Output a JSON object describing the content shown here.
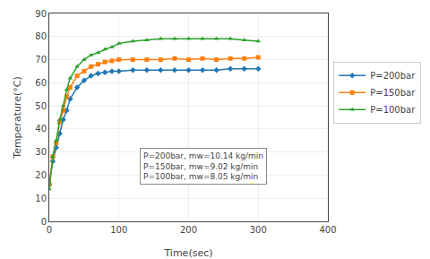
{
  "chart_data": {
    "type": "line",
    "xlabel": "Time(sec)",
    "ylabel": "Temperature(°C)",
    "series": [
      {
        "name": "P=200bar",
        "marker": "diamond",
        "x": [
          0,
          5,
          10,
          15,
          20,
          25,
          30,
          40,
          50,
          60,
          70,
          80,
          90,
          100,
          120,
          140,
          160,
          180,
          200,
          220,
          240,
          260,
          280,
          300
        ],
        "values": [
          16,
          26,
          32,
          38,
          44,
          48,
          53,
          58,
          61,
          63,
          64,
          64.5,
          65,
          65,
          65.5,
          65.5,
          65.5,
          65.5,
          65.5,
          65.5,
          65.5,
          66,
          66,
          66
        ]
      },
      {
        "name": "P=150bar",
        "marker": "square",
        "x": [
          0,
          5,
          10,
          15,
          20,
          25,
          30,
          40,
          50,
          60,
          70,
          80,
          90,
          100,
          120,
          140,
          160,
          180,
          200,
          220,
          240,
          260,
          280,
          300
        ],
        "values": [
          16,
          28,
          34,
          43,
          48,
          54,
          58,
          63,
          65,
          67,
          68,
          69,
          69.5,
          70,
          70,
          70,
          70,
          70.5,
          70,
          70.5,
          70,
          70.5,
          70.5,
          71
        ]
      },
      {
        "name": "P=100bar",
        "marker": "triangle-up",
        "x": [
          0,
          5,
          10,
          15,
          20,
          25,
          30,
          40,
          50,
          60,
          70,
          80,
          90,
          100,
          120,
          140,
          160,
          180,
          200,
          220,
          240,
          260,
          280,
          300
        ],
        "values": [
          14,
          28,
          35,
          44,
          50,
          57,
          62,
          67,
          70,
          72,
          73,
          74.5,
          75.5,
          77,
          78,
          78.5,
          79,
          79,
          79,
          79,
          79,
          79,
          78.5,
          78
        ]
      }
    ],
    "xlim": [
      0,
      400
    ],
    "ylim": [
      0,
      90
    ],
    "xticks": [
      0,
      100,
      200,
      300,
      400
    ],
    "yticks": [
      0,
      10,
      20,
      30,
      40,
      50,
      60,
      70,
      80,
      90
    ],
    "annotations": [
      {
        "text": "P=200bar, mw=10.14 kg/min\nP=150bar, mw=9.02 kg/min\nP=100bar, mw=8.05 kg/min",
        "x": 130,
        "y": 16
      }
    ],
    "grid": true,
    "legend": "right"
  }
}
